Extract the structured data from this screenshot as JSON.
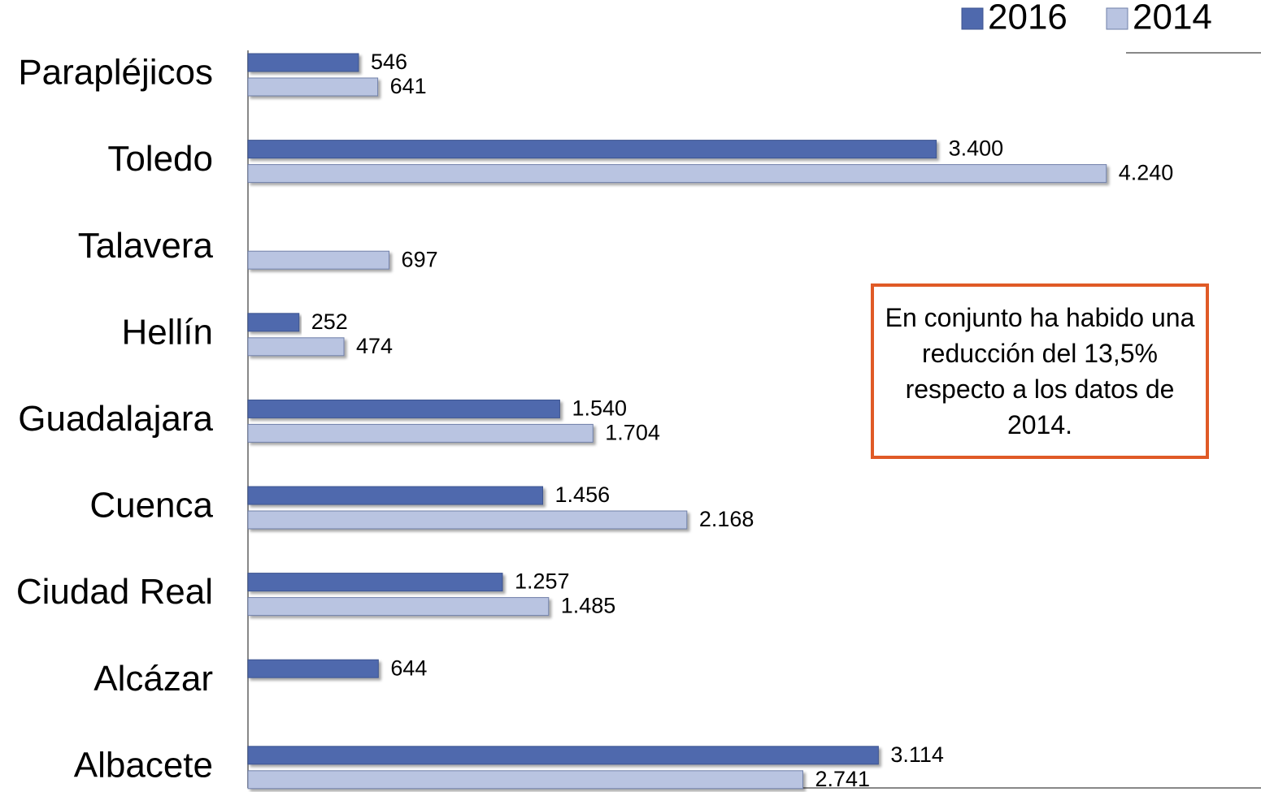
{
  "chart_data": {
    "type": "hbar",
    "categories": [
      "Parapléjicos",
      "Toledo",
      "Talavera",
      "Hellín",
      "Guadalajara",
      "Cuenca",
      "Ciudad Real",
      "Alcázar",
      "Albacete"
    ],
    "series": [
      {
        "name": "2016",
        "color": "#4f69ad",
        "values": [
          546,
          3400,
          null,
          252,
          1540,
          1456,
          1257,
          644,
          3114
        ],
        "value_labels": [
          "546",
          "3.400",
          null,
          "252",
          "1.540",
          "1.456",
          "1.257",
          "644",
          "3.114"
        ]
      },
      {
        "name": "2014",
        "color": "#b9c4e1",
        "values": [
          641,
          4240,
          697,
          474,
          1704,
          2168,
          1485,
          null,
          2741
        ],
        "value_labels": [
          "641",
          "4.240",
          "697",
          "474",
          "1.704",
          "2.168",
          "1.485",
          null,
          "2.741"
        ]
      }
    ],
    "xlim": [
      0,
      5000
    ],
    "legend": "top-right",
    "annotation": "En conjunto ha habido una reducción del 13,5% respecto a los datos de 2014."
  }
}
